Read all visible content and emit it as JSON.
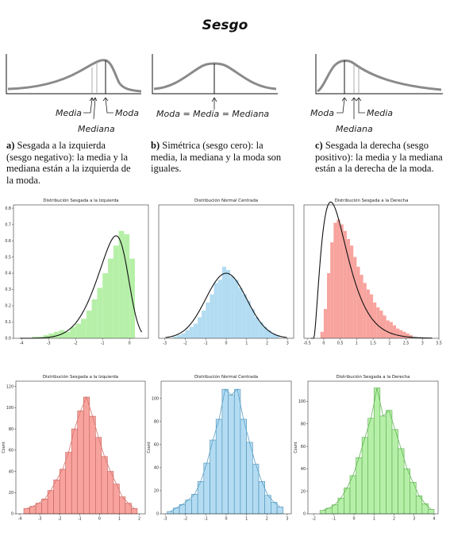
{
  "title": "Sesgo",
  "sketches": [
    {
      "labels": [
        "Media",
        "Mediana",
        "Moda"
      ]
    },
    {
      "label": "Moda = Media = Mediana"
    },
    {
      "labels": [
        "Moda",
        "Mediana",
        "Media"
      ]
    }
  ],
  "descriptions": [
    {
      "letter": "a)",
      "text": "Sesgada a la izquierda (sesgo negativo): la media y la mediana están a la izquierda de la moda."
    },
    {
      "letter": "b)",
      "text": "Simétrica (sesgo cero): la media, la mediana y la moda son iguales."
    },
    {
      "letter": "c)",
      "text": "Sesgada la derecha (sesgo positivo): la media y la mediana están a la derecha de la moda."
    }
  ],
  "colors": {
    "green": "#b6f0a8",
    "blue": "#b3dcf2",
    "red": "#f8a39e",
    "curve": "#111111",
    "sketch": "#8a8a8a"
  },
  "chart_data": [
    {
      "type": "bar",
      "title": "Distribución Sesgada a la Izquierda",
      "color": "green",
      "xlim": [
        -4.3,
        0.7
      ],
      "ylim": [
        0,
        0.82
      ],
      "xticks": [
        -4,
        -3,
        -2,
        -1,
        0
      ],
      "yticks": [
        0.0,
        0.1,
        0.2,
        0.3,
        0.4,
        0.5,
        0.6,
        0.7,
        0.8
      ],
      "bins": [
        [
          -3.6,
          0.01
        ],
        [
          -3.4,
          0.01
        ],
        [
          -3.2,
          0.02
        ],
        [
          -3.0,
          0.03
        ],
        [
          -2.8,
          0.04
        ],
        [
          -2.6,
          0.05
        ],
        [
          -2.4,
          0.04
        ],
        [
          -2.2,
          0.07
        ],
        [
          -2.0,
          0.09
        ],
        [
          -1.8,
          0.12
        ],
        [
          -1.6,
          0.17
        ],
        [
          -1.4,
          0.24
        ],
        [
          -1.2,
          0.31
        ],
        [
          -1.0,
          0.4
        ],
        [
          -0.8,
          0.49
        ],
        [
          -0.6,
          0.57
        ],
        [
          -0.4,
          0.66
        ],
        [
          -0.2,
          0.64
        ],
        [
          0.0,
          0.49
        ]
      ],
      "binwidth": 0.2,
      "curve": "skewleft"
    },
    {
      "type": "bar",
      "title": "Distribución Normal Centrada",
      "color": "blue",
      "xlim": [
        -3.3,
        3.3
      ],
      "ylim": [
        0,
        0.82
      ],
      "xticks": [
        -3,
        -2,
        -1,
        0,
        1,
        2,
        3
      ],
      "yticks": [],
      "bins": [
        [
          -2.6,
          0.01
        ],
        [
          -2.4,
          0.02
        ],
        [
          -2.2,
          0.03
        ],
        [
          -2.0,
          0.05
        ],
        [
          -1.8,
          0.07
        ],
        [
          -1.6,
          0.09
        ],
        [
          -1.4,
          0.13
        ],
        [
          -1.2,
          0.17
        ],
        [
          -1.0,
          0.22
        ],
        [
          -0.8,
          0.27
        ],
        [
          -0.6,
          0.34
        ],
        [
          -0.4,
          0.36
        ],
        [
          -0.2,
          0.44
        ],
        [
          0.0,
          0.42
        ],
        [
          0.2,
          0.38
        ],
        [
          0.4,
          0.36
        ],
        [
          0.6,
          0.31
        ],
        [
          0.8,
          0.27
        ],
        [
          1.0,
          0.23
        ],
        [
          1.2,
          0.18
        ],
        [
          1.4,
          0.13
        ],
        [
          1.6,
          0.1
        ],
        [
          1.8,
          0.07
        ],
        [
          2.0,
          0.05
        ],
        [
          2.2,
          0.03
        ],
        [
          2.4,
          0.02
        ]
      ],
      "binwidth": 0.2,
      "curve": "normal"
    },
    {
      "type": "bar",
      "title": "Distribución Sesgada a la Derecha",
      "color": "red",
      "xlim": [
        -0.6,
        3.5
      ],
      "ylim": [
        0,
        0.82
      ],
      "xticks": [
        -0.5,
        0.0,
        0.5,
        1.0,
        1.5,
        2.0,
        2.5,
        3.0,
        3.5
      ],
      "yticks": [],
      "bins": [
        [
          -0.1,
          0.04
        ],
        [
          0.0,
          0.18
        ],
        [
          0.1,
          0.4
        ],
        [
          0.2,
          0.59
        ],
        [
          0.3,
          0.71
        ],
        [
          0.4,
          0.73
        ],
        [
          0.5,
          0.7
        ],
        [
          0.6,
          0.66
        ],
        [
          0.7,
          0.61
        ],
        [
          0.8,
          0.57
        ],
        [
          0.9,
          0.5
        ],
        [
          1.0,
          0.44
        ],
        [
          1.1,
          0.39
        ],
        [
          1.2,
          0.34
        ],
        [
          1.3,
          0.3
        ],
        [
          1.4,
          0.27
        ],
        [
          1.5,
          0.22
        ],
        [
          1.6,
          0.19
        ],
        [
          1.7,
          0.17
        ],
        [
          1.8,
          0.14
        ],
        [
          1.9,
          0.11
        ],
        [
          2.0,
          0.1
        ],
        [
          2.1,
          0.08
        ],
        [
          2.2,
          0.06
        ],
        [
          2.3,
          0.05
        ],
        [
          2.4,
          0.04
        ],
        [
          2.5,
          0.03
        ],
        [
          2.6,
          0.02
        ]
      ],
      "binwidth": 0.1,
      "curve": "skewright"
    },
    {
      "type": "bar",
      "title": "Distribución Sesgada a la Izquierda",
      "color": "red",
      "xlim": [
        -4.2,
        2.3
      ],
      "ylim": [
        0,
        125
      ],
      "ylabel": "Count",
      "xticks": [
        -4,
        -3,
        -2,
        -1,
        0,
        1,
        2
      ],
      "yticks": [
        0,
        20,
        40,
        60,
        80,
        100,
        120
      ],
      "bins": [
        [
          -3.8,
          5
        ],
        [
          -3.5,
          7
        ],
        [
          -3.2,
          10
        ],
        [
          -2.9,
          14
        ],
        [
          -2.6,
          22
        ],
        [
          -2.3,
          32
        ],
        [
          -2.0,
          42
        ],
        [
          -1.7,
          58
        ],
        [
          -1.4,
          80
        ],
        [
          -1.1,
          97
        ],
        [
          -0.8,
          110
        ],
        [
          -0.5,
          92
        ],
        [
          -0.2,
          72
        ],
        [
          0.1,
          54
        ],
        [
          0.4,
          40
        ],
        [
          0.7,
          28
        ],
        [
          1.0,
          16
        ],
        [
          1.3,
          10
        ],
        [
          1.6,
          5
        ]
      ],
      "binwidth": 0.3,
      "kde": true
    },
    {
      "type": "bar",
      "title": "Distribución Normal Centrada",
      "color": "blue",
      "xlim": [
        -3.2,
        3.2
      ],
      "ylim": [
        0,
        115
      ],
      "ylabel": "Count",
      "xticks": [
        -3,
        -2,
        -1,
        0,
        1,
        2,
        3
      ],
      "yticks": [
        0,
        20,
        40,
        60,
        80,
        100
      ],
      "bins": [
        [
          -2.9,
          2
        ],
        [
          -2.6,
          5
        ],
        [
          -2.3,
          8
        ],
        [
          -2.0,
          12
        ],
        [
          -1.7,
          17
        ],
        [
          -1.4,
          28
        ],
        [
          -1.1,
          44
        ],
        [
          -0.8,
          64
        ],
        [
          -0.5,
          82
        ],
        [
          -0.2,
          108
        ],
        [
          0.1,
          103
        ],
        [
          0.4,
          108
        ],
        [
          0.7,
          82
        ],
        [
          1.0,
          62
        ],
        [
          1.3,
          43
        ],
        [
          1.6,
          28
        ],
        [
          1.9,
          16
        ],
        [
          2.2,
          10
        ],
        [
          2.5,
          6
        ]
      ],
      "binwidth": 0.3,
      "kde": true
    },
    {
      "type": "bar",
      "title": "Distribución Sesgada a la Derecha",
      "color": "green",
      "xlim": [
        -2.3,
        4.2
      ],
      "ylim": [
        0,
        118
      ],
      "ylabel": "Count",
      "xticks": [
        -2,
        -1,
        0,
        1,
        2,
        3,
        4
      ],
      "yticks": [
        0,
        20,
        40,
        60,
        80,
        100
      ],
      "bins": [
        [
          -1.7,
          3
        ],
        [
          -1.4,
          5
        ],
        [
          -1.1,
          8
        ],
        [
          -0.8,
          14
        ],
        [
          -0.5,
          23
        ],
        [
          -0.2,
          34
        ],
        [
          0.1,
          50
        ],
        [
          0.4,
          68
        ],
        [
          0.7,
          85
        ],
        [
          1.0,
          112
        ],
        [
          1.3,
          87
        ],
        [
          1.6,
          92
        ],
        [
          1.9,
          75
        ],
        [
          2.2,
          58
        ],
        [
          2.5,
          40
        ],
        [
          2.8,
          28
        ],
        [
          3.1,
          16
        ],
        [
          3.4,
          9
        ],
        [
          3.7,
          4
        ]
      ],
      "binwidth": 0.3,
      "kde": true
    }
  ]
}
